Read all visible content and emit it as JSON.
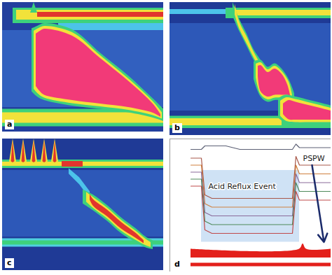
{
  "chart_data": [
    {
      "type": "area",
      "label": "a",
      "color": "#233f9e",
      "tick_labels": false,
      "xlim": [
        0,
        23
      ],
      "ylim": [
        0,
        37
      ],
      "xticks": [],
      "yticks": [],
      "areas": [
        {
          "color": "#3260bf",
          "x": [
            0,
            23
          ],
          "y1": [
            8,
            8
          ],
          "y2": [
            30,
            30
          ]
        },
        {
          "color": "#3ed17c",
          "x": [
            1.5,
            23
          ],
          "y1": [
            1.6,
            1.6
          ],
          "y2": [
            6.0,
            6.0
          ]
        },
        {
          "color": "#f2e23a",
          "x": [
            2,
            23
          ],
          "y1": [
            2.2,
            2.2
          ],
          "y2": [
            5.0,
            5.0
          ]
        },
        {
          "color": "#e2352d",
          "x": [
            5,
            23
          ],
          "y1": [
            2.8,
            2.8
          ],
          "y2": [
            4.2,
            4.2
          ]
        },
        {
          "color": "#3ed17c",
          "x": [
            4.0,
            4.5,
            5.0
          ],
          "y1": [
            3,
            0,
            3
          ],
          "y2": [
            3,
            3,
            3
          ]
        },
        {
          "color": "#4cc3ea",
          "x": [
            8,
            23
          ],
          "y1": [
            6,
            6
          ],
          "y2": [
            8,
            8
          ]
        },
        {
          "color": "#3ed17c",
          "x": [
            0,
            23
          ],
          "y1": [
            30.5,
            30.5
          ],
          "y2": [
            35.5,
            35.5
          ]
        },
        {
          "color": "#f2e23a",
          "x": [
            0,
            23
          ],
          "y1": [
            31.5,
            31.5
          ],
          "y2": [
            34.5,
            34.5
          ]
        },
        {
          "color": "#3ed17c",
          "x": [
            4.2,
            5.0,
            6.0,
            10,
            14,
            18,
            21.5,
            23
          ],
          "y1": [
            7.5,
            6.8,
            6.0,
            7.8,
            14.5,
            21,
            27.5,
            30.5
          ],
          "y2": [
            25.5,
            27,
            28,
            29.6,
            30.5,
            31.5,
            33,
            34
          ]
        },
        {
          "color": "#f2e23a",
          "x": [
            4.5,
            5.2,
            6.0,
            10,
            14,
            18,
            21.5,
            22.8
          ],
          "y1": [
            8.2,
            7.4,
            6.8,
            8.6,
            15.2,
            21.8,
            28.3,
            31.5
          ],
          "y2": [
            24.8,
            26.3,
            27.3,
            28.9,
            29.8,
            30.8,
            32.3,
            33.3
          ]
        },
        {
          "color": "#f23a78",
          "x": [
            4.8,
            5.4,
            6.0,
            10,
            14,
            18,
            21.5,
            22.6
          ],
          "y1": [
            9.0,
            8.2,
            7.6,
            9.6,
            16,
            22.5,
            29,
            32.0
          ],
          "y2": [
            24,
            25.5,
            26.5,
            28,
            29,
            30,
            31.6,
            32.8
          ]
        }
      ]
    },
    {
      "type": "area",
      "label": "b",
      "color": "#1f3a96",
      "tick_labels": false,
      "xlim": [
        0,
        23
      ],
      "ylim": [
        0,
        38
      ],
      "xticks": [],
      "yticks": [],
      "areas": [
        {
          "color": "#2d58b8",
          "x": [
            0,
            23
          ],
          "y1": [
            6,
            6
          ],
          "y2": [
            31,
            31
          ]
        },
        {
          "color": "#4cc3ea",
          "x": [
            0,
            8
          ],
          "y1": [
            2.0,
            2.0
          ],
          "y2": [
            3.4,
            3.4
          ]
        },
        {
          "color": "#3ed17c",
          "x": [
            8,
            23
          ],
          "y1": [
            1.6,
            1.6
          ],
          "y2": [
            4.6,
            4.6
          ]
        },
        {
          "color": "#f2e23a",
          "x": [
            9,
            23
          ],
          "y1": [
            2.2,
            2.2
          ],
          "y2": [
            3.8,
            3.8
          ]
        },
        {
          "color": "#3ed17c",
          "x": [
            9.0,
            10.0,
            11.0,
            12.0,
            13.0
          ],
          "y1": [
            0.0,
            5.0,
            9.0,
            13.5,
            16.5
          ],
          "y2": [
            4.0,
            8.5,
            12.5,
            16.5,
            19.5
          ]
        },
        {
          "color": "#f2e23a",
          "x": [
            9.3,
            10.0,
            11.0,
            12.0,
            12.8
          ],
          "y1": [
            0.5,
            5.8,
            9.8,
            14.2,
            17.0
          ],
          "y2": [
            3.5,
            7.8,
            11.8,
            15.8,
            18.8
          ]
        },
        {
          "color": "#3ed17c",
          "x": [
            0,
            23
          ],
          "y1": [
            32.5,
            32.5
          ],
          "y2": [
            36,
            36
          ]
        },
        {
          "color": "#f2e23a",
          "x": [
            0,
            16
          ],
          "y1": [
            33.2,
            33.2
          ],
          "y2": [
            35.2,
            35.2
          ]
        },
        {
          "color": "#3ed17c",
          "x": [
            12,
            13,
            14,
            15,
            16,
            17,
            17.8
          ],
          "y1": [
            17,
            16.5,
            18.5,
            17.5,
            19,
            22,
            26
          ],
          "y2": [
            22,
            27,
            28.5,
            28,
            28,
            28,
            28.5
          ]
        },
        {
          "color": "#f2e23a",
          "x": [
            12.3,
            13,
            14,
            15,
            16,
            17,
            17.5
          ],
          "y1": [
            17.6,
            17.2,
            19.2,
            18.2,
            19.7,
            22.7,
            26.5
          ],
          "y2": [
            21.5,
            26.3,
            27.8,
            27.3,
            27.3,
            27.3,
            27.8
          ]
        },
        {
          "color": "#f23a78",
          "x": [
            12.6,
            13,
            14,
            15,
            16,
            16.8,
            17.2
          ],
          "y1": [
            18.2,
            18,
            20,
            19,
            20.5,
            23.5,
            26.5
          ],
          "y2": [
            21,
            25.5,
            27,
            26.5,
            26.5,
            26.5,
            27
          ]
        },
        {
          "color": "#3ed17c",
          "x": [
            15.5,
            16.5,
            18,
            20,
            22,
            23
          ],
          "y1": [
            27.5,
            26.5,
            27,
            28,
            29,
            29.5
          ],
          "y2": [
            33,
            34.5,
            35,
            35,
            35,
            35
          ]
        },
        {
          "color": "#f2e23a",
          "x": [
            15.8,
            16.7,
            18,
            20,
            22,
            23
          ],
          "y1": [
            28.2,
            27.2,
            27.7,
            28.7,
            29.7,
            30.2
          ],
          "y2": [
            32.5,
            34,
            34.3,
            34.3,
            34.3,
            34.3
          ]
        },
        {
          "color": "#f23a78",
          "x": [
            16.2,
            17,
            18,
            20,
            22,
            23
          ],
          "y1": [
            29,
            28,
            28.5,
            29.5,
            30.5,
            31
          ],
          "y2": [
            32,
            33.5,
            33.6,
            33.6,
            33.6,
            33.6
          ]
        }
      ]
    },
    {
      "type": "area",
      "label": "c",
      "color": "#1f3a96",
      "tick_labels": false,
      "xlim": [
        0,
        23
      ],
      "ylim": [
        0,
        37.5
      ],
      "xticks": [],
      "yticks": [],
      "areas": [
        {
          "color": "#2d58b8",
          "x": [
            0,
            23
          ],
          "y1": [
            9,
            9
          ],
          "y2": [
            28,
            28
          ]
        },
        {
          "color": "#3ed17c",
          "x": [
            0,
            23
          ],
          "y1": [
            6.0,
            6.0
          ],
          "y2": [
            8.4,
            8.4
          ]
        },
        {
          "color": "#f2e23a",
          "x": [
            0,
            23
          ],
          "y1": [
            6.6,
            6.6
          ],
          "y2": [
            7.8,
            7.8
          ]
        },
        {
          "color": "#e2352d",
          "x": [
            8.5,
            11.5
          ],
          "y1": [
            6.4,
            6.4
          ],
          "y2": [
            8.0,
            8.0
          ]
        },
        {
          "color": "#f2e23a",
          "x": [
            1.0,
            1.5,
            2.0
          ],
          "y1": [
            6.5,
            0,
            6.5
          ],
          "y2": [
            6.5,
            7,
            6.5
          ]
        },
        {
          "color": "#f2e23a",
          "x": [
            2.5,
            3.0,
            3.5
          ],
          "y1": [
            6.5,
            0,
            6.5
          ],
          "y2": [
            6.5,
            7,
            6.5
          ]
        },
        {
          "color": "#f2e23a",
          "x": [
            4.0,
            4.5,
            5.0
          ],
          "y1": [
            6.5,
            0,
            6.5
          ],
          "y2": [
            6.5,
            7,
            6.5
          ]
        },
        {
          "color": "#f2e23a",
          "x": [
            5.5,
            6.0,
            6.5
          ],
          "y1": [
            6.5,
            0,
            6.5
          ],
          "y2": [
            6.5,
            7,
            6.5
          ]
        },
        {
          "color": "#f2e23a",
          "x": [
            7.0,
            7.5,
            8.0
          ],
          "y1": [
            6.5,
            0,
            6.5
          ],
          "y2": [
            6.5,
            7,
            6.5
          ]
        },
        {
          "color": "#e2352d",
          "x": [
            1.25,
            1.5,
            1.75
          ],
          "y1": [
            6.5,
            0.5,
            6.5
          ],
          "y2": [
            6.5,
            6.8,
            6.5
          ]
        },
        {
          "color": "#e2352d",
          "x": [
            2.75,
            3.0,
            3.25
          ],
          "y1": [
            6.5,
            0.5,
            6.5
          ],
          "y2": [
            6.5,
            6.8,
            6.5
          ]
        },
        {
          "color": "#e2352d",
          "x": [
            4.25,
            4.5,
            4.75
          ],
          "y1": [
            6.5,
            0.5,
            6.5
          ],
          "y2": [
            6.5,
            6.8,
            6.5
          ]
        },
        {
          "color": "#e2352d",
          "x": [
            5.75,
            6.0,
            6.25
          ],
          "y1": [
            6.5,
            0.5,
            6.5
          ],
          "y2": [
            6.5,
            6.8,
            6.5
          ]
        },
        {
          "color": "#e2352d",
          "x": [
            7.25,
            7.5,
            7.75
          ],
          "y1": [
            6.5,
            0.5,
            6.5
          ],
          "y2": [
            6.5,
            6.8,
            6.5
          ]
        },
        {
          "color": "#4cc3ea",
          "x": [
            9.5,
            11,
            12.5
          ],
          "y1": [
            8.5,
            11,
            15
          ],
          "y2": [
            10,
            13,
            17
          ]
        },
        {
          "color": "#4fd0e0",
          "x": [
            0,
            23
          ],
          "y1": [
            28.4,
            28.4
          ],
          "y2": [
            30.8,
            30.8
          ]
        },
        {
          "color": "#3ed17c",
          "x": [
            0,
            23
          ],
          "y1": [
            29.0,
            29.0
          ],
          "y2": [
            30.2,
            30.2
          ]
        },
        {
          "color": "#3ed17c",
          "x": [
            11.5,
            13,
            15,
            17,
            19,
            20.5,
            21.5
          ],
          "y1": [
            14.5,
            16,
            19,
            22.5,
            25.5,
            28,
            29
          ],
          "y2": [
            18.5,
            20.5,
            23.5,
            27,
            29.5,
            31,
            31.5
          ]
        },
        {
          "color": "#f2e23a",
          "x": [
            12,
            13,
            15,
            17,
            19,
            20.5,
            21.2
          ],
          "y1": [
            15.2,
            16.7,
            19.7,
            23.2,
            26.2,
            28.6,
            29.5
          ],
          "y2": [
            18,
            19.8,
            22.8,
            26.3,
            28.8,
            30.4,
            30.9
          ]
        },
        {
          "color": "#e2352d",
          "x": [
            12.5,
            13,
            15,
            17,
            19,
            20.2
          ],
          "y1": [
            15.8,
            17.3,
            20.3,
            23.8,
            26.8,
            29.0
          ],
          "y2": [
            17.4,
            19.2,
            22.2,
            25.7,
            28.2,
            29.8
          ]
        }
      ]
    },
    {
      "type": "line",
      "label": "d",
      "color": "#ffffff",
      "tick_labels": false,
      "xlim": [
        0,
        23
      ],
      "ylim": [
        0,
        38
      ],
      "xticks": [],
      "yticks": [],
      "x": [
        3.0,
        4.5,
        5.0,
        6.0,
        8.0,
        10.0,
        12.0,
        14.0,
        16.0,
        17.5,
        18.0,
        18.5,
        19.0,
        20.0,
        22.0,
        23.0
      ],
      "series": [
        {
          "color": "#5c6075",
          "values": [
            3.0,
            3.0,
            2.0,
            2.0,
            2.0,
            3.0,
            3.0,
            3.0,
            3.0,
            3.0,
            1.5,
            2.5,
            2.5,
            2.5,
            2.5,
            2.5
          ]
        },
        {
          "color": "#a8584a",
          "values": [
            5.5,
            5.5,
            16.0,
            17.0,
            17.0,
            17.0,
            17.0,
            17.0,
            17.0,
            17.0,
            5.0,
            7.5,
            7.5,
            7.5,
            7.5,
            7.5
          ]
        },
        {
          "color": "#d0803e",
          "values": [
            7.5,
            7.5,
            18.5,
            19.5,
            19.5,
            19.5,
            19.5,
            19.5,
            19.5,
            19.5,
            7.5,
            10.0,
            10.0,
            10.0,
            10.0,
            10.0
          ]
        },
        {
          "color": "#8a6a9a",
          "values": [
            9.5,
            9.5,
            21.0,
            22.0,
            22.0,
            22.0,
            22.0,
            22.0,
            22.0,
            22.0,
            10.0,
            12.5,
            12.5,
            12.5,
            12.5,
            12.5
          ]
        },
        {
          "color": "#4f8a5a",
          "values": [
            11.5,
            11.5,
            23.5,
            24.5,
            24.5,
            24.5,
            24.5,
            24.5,
            24.5,
            24.5,
            12.5,
            15.0,
            15.0,
            15.0,
            15.0,
            15.0
          ]
        },
        {
          "color": "#c04a4a",
          "values": [
            13.5,
            13.5,
            26.0,
            27.0,
            27.0,
            27.0,
            27.0,
            27.0,
            27.0,
            27.0,
            15.0,
            17.5,
            17.5,
            17.5,
            17.5,
            17.5
          ]
        }
      ],
      "shaded": {
        "color": "#cfe2f5",
        "x": [
          4.5,
          18.5
        ],
        "y": [
          9,
          29.5
        ]
      },
      "areas": [
        {
          "color": "#e3201b",
          "x": [
            3,
            18.5,
            19,
            19.5,
            23
          ],
          "y1": [
            31.5,
            31.5,
            30,
            31.5,
            31.5
          ],
          "y2": [
            34,
            34,
            34,
            34,
            34
          ]
        },
        {
          "color": "#e3201b",
          "x": [
            3,
            23
          ],
          "y1": [
            35.5,
            35.5
          ],
          "y2": [
            36.5,
            36.5
          ]
        }
      ],
      "annotations": [
        {
          "text": "Acid Reflux Event",
          "x": 5.5,
          "y": 13.5,
          "color": "#1a1a1a"
        },
        {
          "text": "PSPW",
          "x": 19.0,
          "y": 5.5,
          "color": "#1a1a1a"
        }
      ],
      "arrow": {
        "x1": 20.3,
        "y1": 7.5,
        "x2": 22.0,
        "y2": 29.5,
        "color": "#1a2a6a"
      }
    }
  ]
}
